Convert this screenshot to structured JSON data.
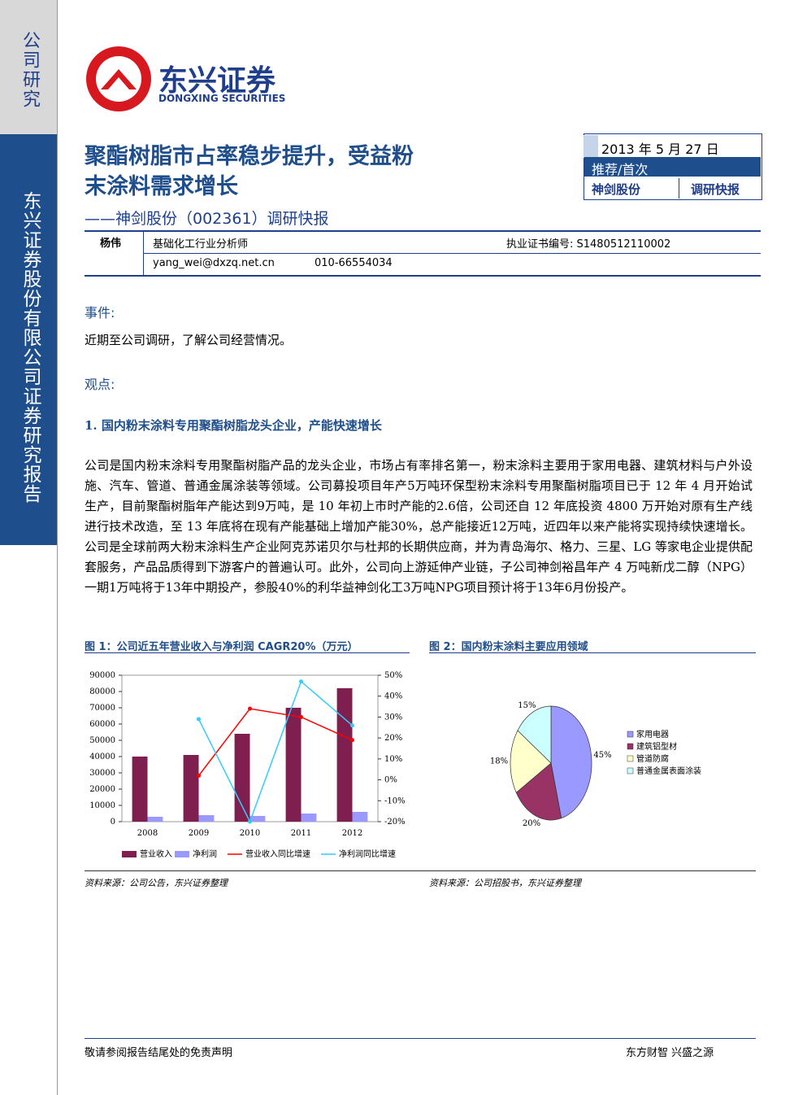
{
  "sidebar": {
    "section": "公司研究",
    "vertical": "东兴证券股份有限公司证券研究报告"
  },
  "logo": {
    "cn": "东兴证券",
    "en": "DONGXING SECURITIES"
  },
  "header": {
    "title_line1": "聚酯树脂市占率稳步提升，受益粉",
    "title_line2": "末涂料需求增长",
    "subtitle": "——神剑股份（002361）调研快报",
    "date": "2013 年 5 月 27 日",
    "rating": "推荐/首次",
    "stock": "神剑股份",
    "report_type": "调研快报"
  },
  "analyst": {
    "name": "杨伟",
    "role": "基础化工行业分析师",
    "cert": "执业证书编号: S1480512110002",
    "email": "yang_wei@dxzq.net.cn",
    "phone": "010-66554034"
  },
  "body": {
    "event_heading": "事件:",
    "event_text": "近期至公司调研，了解公司经营情况。",
    "view_heading": "观点:",
    "section1_heading": "1. 国内粉末涂料专用聚酯树脂龙头企业，产能快速增长",
    "section1_text": "公司是国内粉末涂料专用聚酯树脂产品的龙头企业，市场占有率排名第一，粉末涂料主要用于家用电器、建筑材料与户外设施、汽车、管道、普通金属涂装等领域。公司募投项目年产5万吨环保型粉末涂料专用聚酯树脂项目已于 12 年 4 月开始试生产，目前聚酯树脂年产能达到9万吨，是 10 年初上市时产能的2.6倍，公司还自 12 年底投资 4800 万开始对原有生产线进行技术改造，至 13 年底将在现有产能基础上增加产能30%，总产能接近12万吨，近四年以来产能将实现持续快速增长。公司是全球前两大粉末涂料生产企业阿克苏诺贝尔与杜邦的长期供应商，并为青岛海尔、格力、三星、LG 等家电企业提供配套服务，产品品质得到下游客户的普遍认可。此外，公司向上游延伸产业链，子公司神剑裕昌年产 4 万吨新戊二醇（NPG）一期1万吨将于13年中期投产，参股40%的利华益神剑化工3万吨NPG项目预计将于13年6月份投产。"
  },
  "figures": {
    "fig1_title": "图 1：公司近五年营业收入与净利润 CAGR20%（万元）",
    "fig1_source": "资料来源：公司公告，东兴证券整理",
    "fig2_title": "图 2：国内粉末涂料主要应用领域",
    "fig2_source": "资料来源：公司招股书，东兴证券整理"
  },
  "footer": {
    "left": "敬请参阅报告结尾处的免责声明",
    "right": "东方财智 兴盛之源"
  },
  "chart_data": [
    {
      "type": "bar-line",
      "categories": [
        "2008",
        "2009",
        "2010",
        "2011",
        "2012"
      ],
      "ylim": [
        0,
        90000
      ],
      "yticks": [
        0,
        10000,
        20000,
        30000,
        40000,
        50000,
        60000,
        70000,
        80000,
        90000
      ],
      "y2lim": [
        -20,
        50
      ],
      "y2ticks": [
        {
          "value": -20,
          "label": "-20%"
        },
        {
          "value": -10,
          "label": "-10%"
        },
        {
          "value": 0,
          "label": "0%"
        },
        {
          "value": 10,
          "label": "10%"
        },
        {
          "value": 20,
          "label": "20%"
        },
        {
          "value": 30,
          "label": "30%"
        },
        {
          "value": 40,
          "label": "40%"
        },
        {
          "value": 50,
          "label": "50%"
        }
      ],
      "series": [
        {
          "name": "营业收入",
          "color": "#7f1f4f",
          "kind": "bar",
          "values": [
            40000,
            41000,
            54000,
            70000,
            82000
          ]
        },
        {
          "name": "净利润",
          "color": "#9999ff",
          "kind": "bar",
          "values": [
            3000,
            4000,
            3500,
            5000,
            6000
          ]
        },
        {
          "name": "营业收入同比增速",
          "color": "#ff0000",
          "kind": "line",
          "axis": "y2",
          "values": [
            null,
            2,
            34,
            30,
            19
          ]
        },
        {
          "name": "净利润同比增速",
          "color": "#33ccff",
          "kind": "line",
          "axis": "y2",
          "values": [
            null,
            29,
            -20,
            47,
            26
          ]
        }
      ]
    },
    {
      "type": "pie",
      "categories": [
        "家用电器",
        "建筑铝型材",
        "管道防腐",
        "普通金属表面涂装"
      ],
      "values": [
        45,
        20,
        18,
        15
      ],
      "value_labels": [
        "45%",
        "20%",
        "18%",
        "15%"
      ],
      "colors": [
        "#9999ff",
        "#993366",
        "#ffffcc",
        "#ccffff"
      ]
    }
  ]
}
